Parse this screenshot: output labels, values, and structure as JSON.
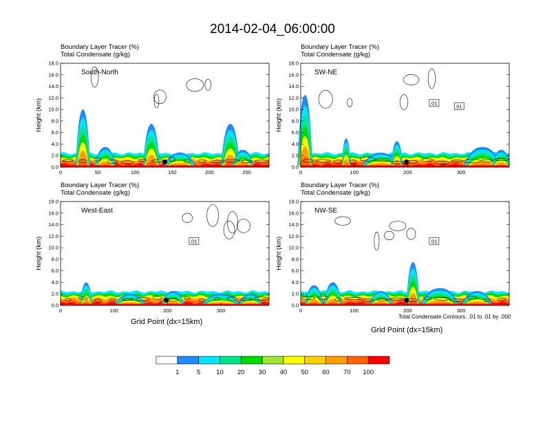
{
  "title": "2014-02-04_06:00:00",
  "panel_labels": {
    "line1": "Boundary Layer Tracer   (%)",
    "line2": "Total Condensate   (g/kg)"
  },
  "xtitle": "Grid Point (dx=15km)",
  "footnote": "Total Condensate Contours: .01 to .01 by .000",
  "colors": {
    "levels": [
      "#ffffff",
      "#1e8cff",
      "#00e6ff",
      "#00e68c",
      "#00dc00",
      "#a0e632",
      "#ffff00",
      "#ffd200",
      "#ffa000",
      "#ff6400",
      "#ff0000"
    ]
  },
  "chart_data": [
    {
      "type": "heatmap",
      "region": "South-North",
      "ylabel": "Height (km)",
      "ylim": [
        0,
        18
      ],
      "yticks": [
        "0.0",
        "2.0",
        "4.0",
        "6.0",
        "8.0",
        "10.0",
        "12.0",
        "14.0",
        "16.0",
        "18.0"
      ],
      "xlim": [
        0,
        280
      ],
      "xticks": [
        0,
        50,
        100,
        150,
        200,
        250
      ],
      "marker_x": 140,
      "contour_labels": [],
      "plumes": [
        {
          "x": 30,
          "w": 7,
          "h": 10.0
        },
        {
          "x": 60,
          "w": 10,
          "h": 3.5
        },
        {
          "x": 122,
          "w": 8,
          "h": 7.5
        },
        {
          "x": 160,
          "w": 15,
          "h": 2.5
        },
        {
          "x": 228,
          "w": 9,
          "h": 7.5
        },
        {
          "x": 245,
          "w": 10,
          "h": 3.0
        }
      ]
    },
    {
      "type": "heatmap",
      "region": "SW-NE",
      "ylabel": "Height (km)",
      "ylim": [
        0,
        18
      ],
      "yticks": [
        "0.0",
        "2.0",
        "4.0",
        "6.0",
        "8.0",
        "10.0",
        "12.0",
        "14.0",
        "16.0",
        "18.0"
      ],
      "xlim": [
        0,
        390
      ],
      "xticks": [
        0,
        100,
        200,
        300
      ],
      "marker_x": 198,
      "contour_labels": [
        ".01",
        ".01"
      ],
      "plumes": [
        {
          "x": 8,
          "w": 10,
          "h": 12.5
        },
        {
          "x": 85,
          "w": 6,
          "h": 5.0
        },
        {
          "x": 150,
          "w": 25,
          "h": 2.5
        },
        {
          "x": 180,
          "w": 8,
          "h": 4.5
        },
        {
          "x": 340,
          "w": 25,
          "h": 3.5
        },
        {
          "x": 375,
          "w": 12,
          "h": 3.0
        }
      ]
    },
    {
      "type": "heatmap",
      "region": "West-East",
      "ylabel": "Height (km)",
      "ylim": [
        0,
        18
      ],
      "yticks": [
        "0.0",
        "2.0",
        "4.0",
        "6.0",
        "8.0",
        "10.0",
        "12.0",
        "14.0",
        "16.0",
        "18.0"
      ],
      "xlim": [
        0,
        390
      ],
      "xticks": [
        0,
        100,
        200,
        300
      ],
      "marker_x": 198,
      "contour_labels": [
        ".01"
      ],
      "plumes": [
        {
          "x": 48,
          "w": 8,
          "h": 4.0
        },
        {
          "x": 130,
          "w": 20,
          "h": 2.0
        },
        {
          "x": 210,
          "w": 15,
          "h": 2.5
        },
        {
          "x": 300,
          "w": 25,
          "h": 2.0
        },
        {
          "x": 355,
          "w": 15,
          "h": 2.0
        }
      ]
    },
    {
      "type": "heatmap",
      "region": "NW-SE",
      "ylabel": "Height (km)",
      "ylim": [
        0,
        18
      ],
      "yticks": [
        "0.0",
        "2.0",
        "4.0",
        "6.0",
        "8.0",
        "10.0",
        "12.0",
        "14.0",
        "16.0",
        "18.0"
      ],
      "xlim": [
        0,
        390
      ],
      "xticks": [
        0,
        100,
        200,
        300
      ],
      "marker_x": 198,
      "contour_labels": [
        ".01"
      ],
      "plumes": [
        {
          "x": 25,
          "w": 12,
          "h": 3.5
        },
        {
          "x": 60,
          "w": 12,
          "h": 4.0
        },
        {
          "x": 150,
          "w": 15,
          "h": 2.5
        },
        {
          "x": 210,
          "w": 9,
          "h": 7.5
        },
        {
          "x": 260,
          "w": 25,
          "h": 3.0
        },
        {
          "x": 330,
          "w": 20,
          "h": 2.5
        }
      ]
    }
  ],
  "colorbar": {
    "labels": [
      "1",
      "5",
      "10",
      "20",
      "30",
      "40",
      "50",
      "60",
      "70",
      "100"
    ]
  }
}
